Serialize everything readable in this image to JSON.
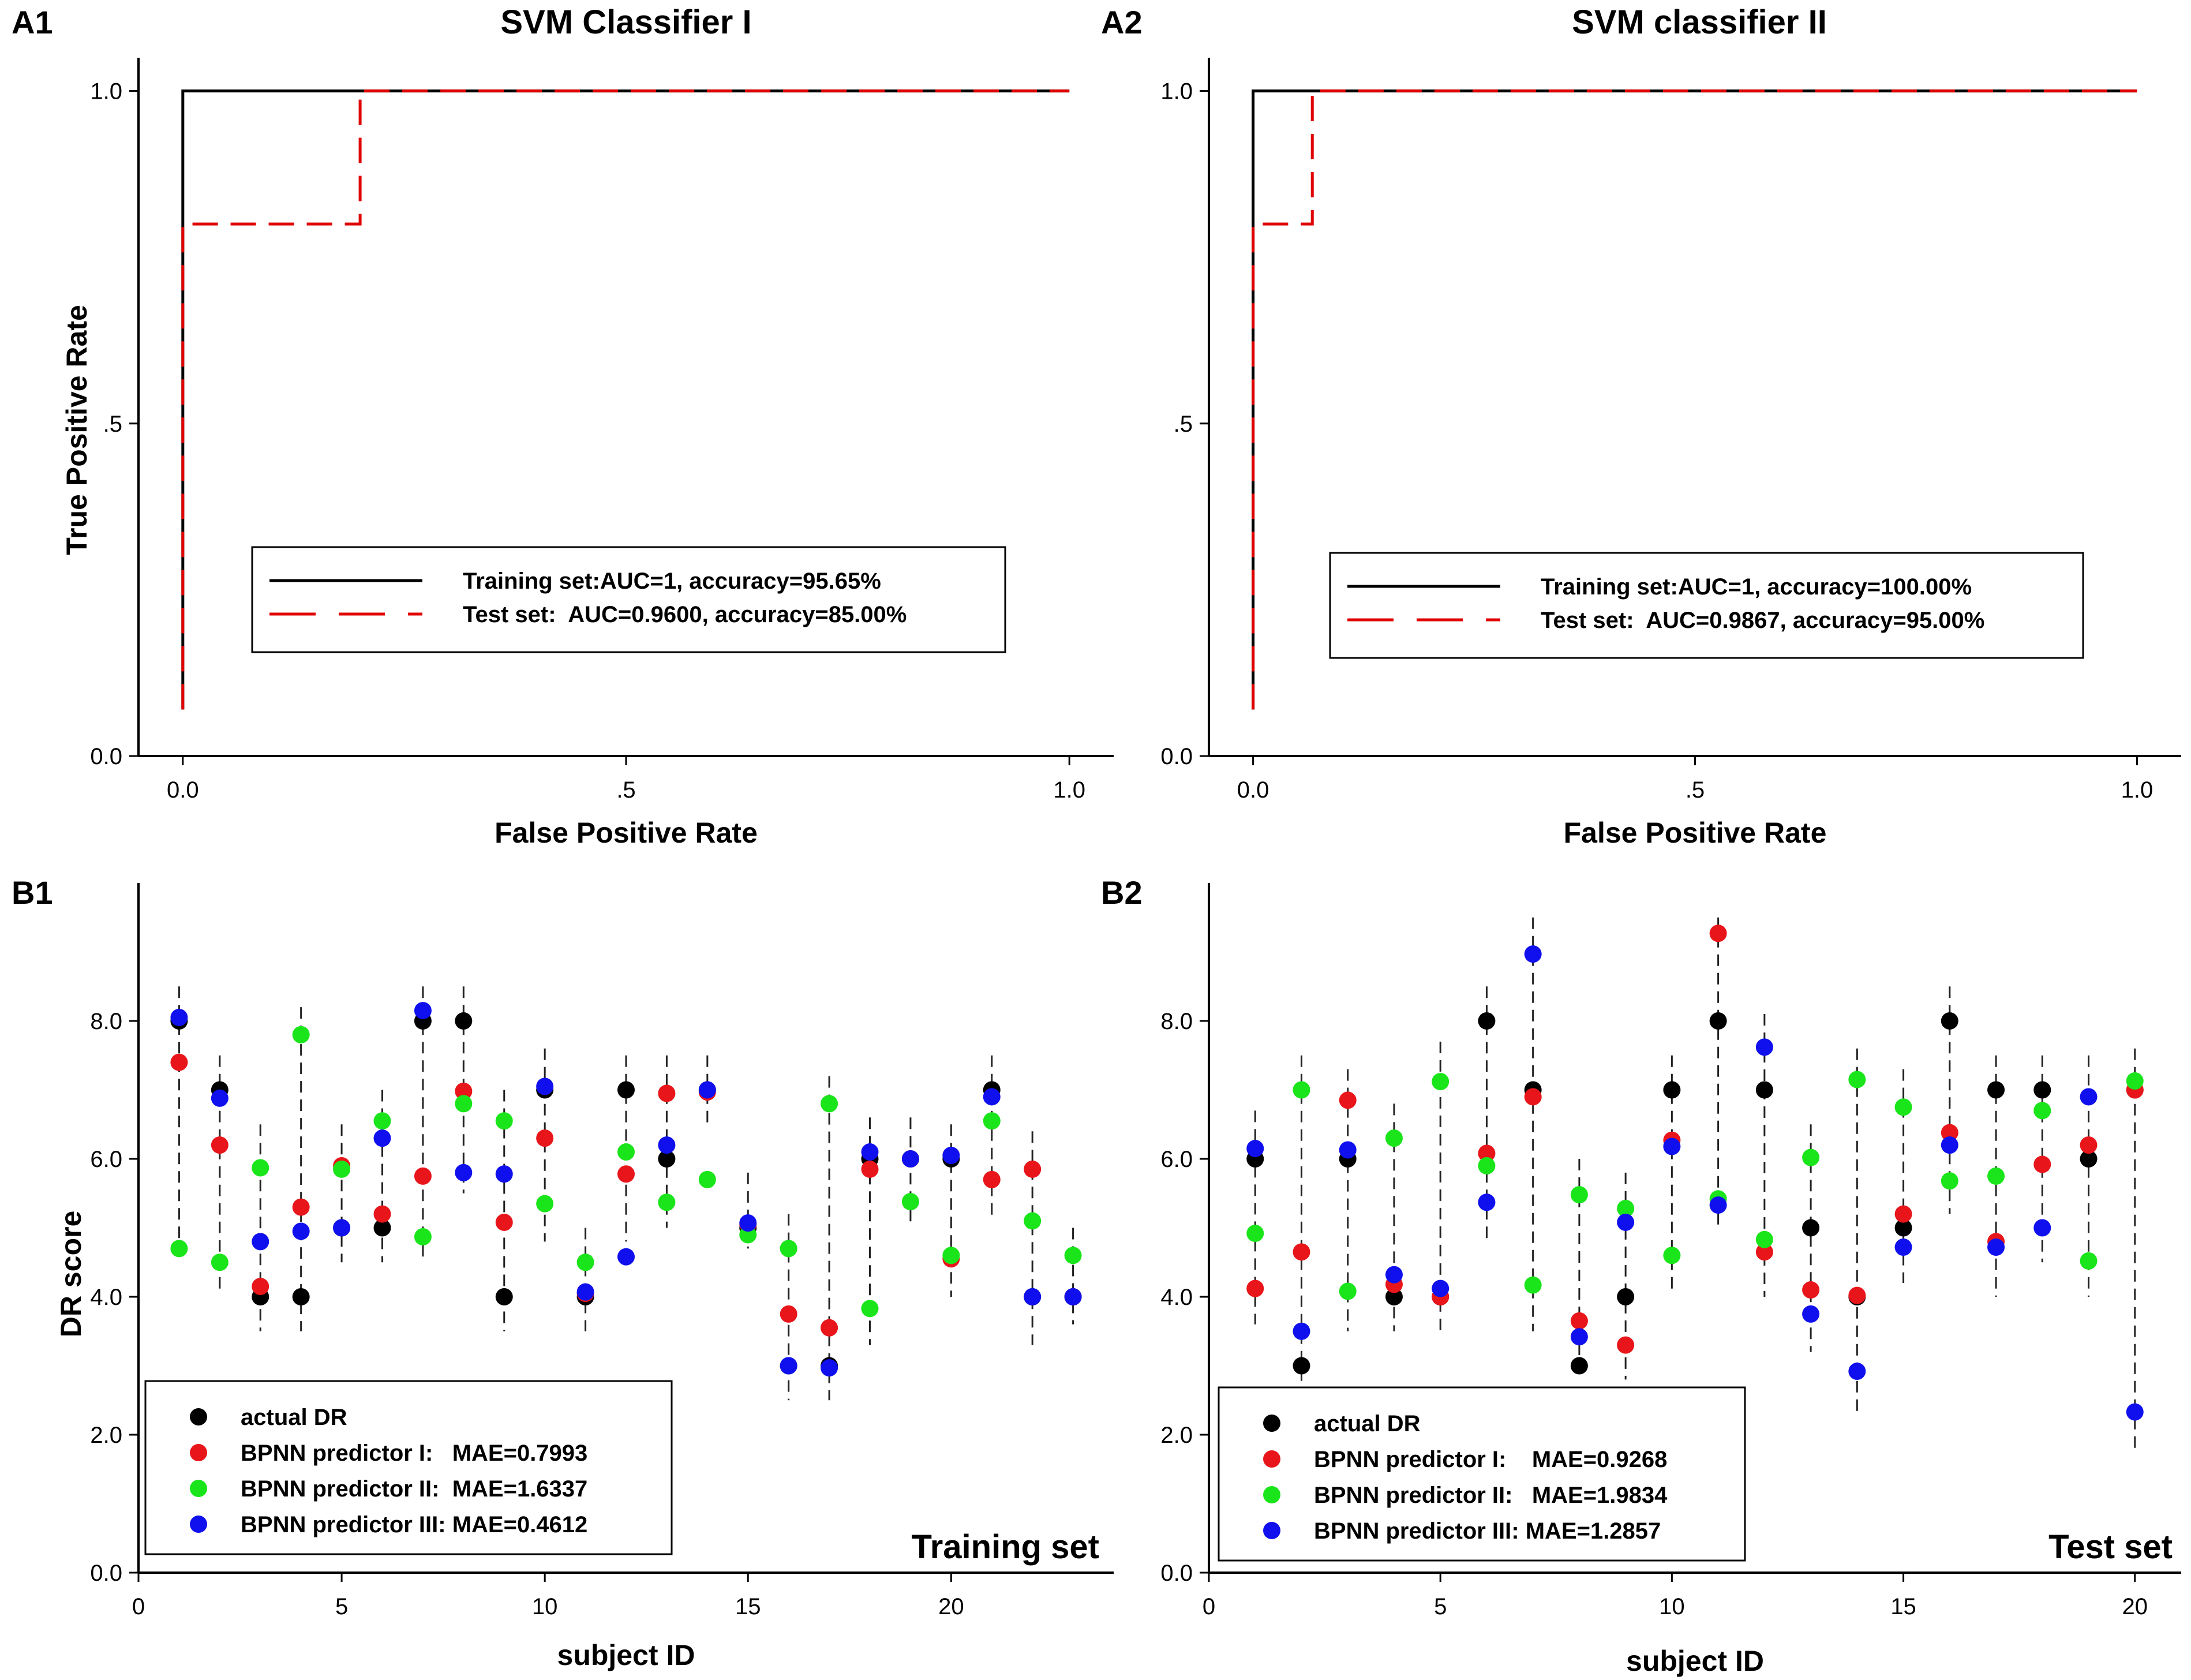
{
  "panels": {
    "A1": "A1",
    "A2": "A2",
    "B1": "B1",
    "B2": "B2"
  },
  "colors": {
    "training_line": "#000000",
    "test_line": "#e00000",
    "actual": "#000000",
    "pred1": "#e8161b",
    "pred2": "#1ae51a",
    "pred3": "#1010ee"
  },
  "chart_data": [
    {
      "id": "A1",
      "type": "line",
      "title": "SVM Classifier I",
      "xlabel": "False Positive Rate",
      "ylabel": "True Positive Rate",
      "xlim": [
        -0.05,
        1.05
      ],
      "ylim": [
        0,
        1.05
      ],
      "xticks": [
        {
          "v": 0,
          "label": "0.0"
        },
        {
          "v": 0.5,
          "label": ".5"
        },
        {
          "v": 1,
          "label": "1.0"
        }
      ],
      "yticks": [
        {
          "v": 0,
          "label": "0.0"
        },
        {
          "v": 0.5,
          "label": ".5"
        },
        {
          "v": 1,
          "label": "1.0"
        }
      ],
      "series": [
        {
          "name": "Training set:AUC=1, accuracy=95.65%",
          "style": "solid",
          "x": [
            0,
            0,
            1
          ],
          "y": [
            0.07,
            1,
            1
          ]
        },
        {
          "name": "Test set:  AUC=0.9600, accuracy=85.00%",
          "style": "dashed",
          "x": [
            0,
            0,
            0.2,
            0.2,
            1
          ],
          "y": [
            0.07,
            0.8,
            0.8,
            1,
            1
          ]
        }
      ],
      "legend_position": "lower-center"
    },
    {
      "id": "A2",
      "type": "line",
      "title": "SVM classifier II",
      "xlabel": "False Positive Rate",
      "ylabel": "",
      "xlim": [
        -0.05,
        1.05
      ],
      "ylim": [
        0,
        1.05
      ],
      "xticks": [
        {
          "v": 0,
          "label": "0.0"
        },
        {
          "v": 0.5,
          "label": ".5"
        },
        {
          "v": 1,
          "label": "1.0"
        }
      ],
      "yticks": [
        {
          "v": 0,
          "label": "0.0"
        },
        {
          "v": 0.5,
          "label": ".5"
        },
        {
          "v": 1,
          "label": "1.0"
        }
      ],
      "series": [
        {
          "name": "Training set:AUC=1, accuracy=100.00%",
          "style": "solid",
          "x": [
            0,
            0,
            1
          ],
          "y": [
            0.07,
            1,
            1
          ]
        },
        {
          "name": "Test set:  AUC=0.9867, accuracy=95.00%",
          "style": "dashed",
          "x": [
            0,
            0,
            0.067,
            0.067,
            1
          ],
          "y": [
            0.07,
            0.8,
            0.8,
            1,
            1
          ]
        }
      ],
      "legend_position": "lower-center"
    },
    {
      "id": "B1",
      "type": "scatter",
      "set_label": "Training set",
      "xlabel": "subject ID",
      "ylabel": "DR score",
      "xlim": [
        0,
        24
      ],
      "ylim": [
        0,
        10
      ],
      "xticks": [
        {
          "v": 0,
          "label": "0"
        },
        {
          "v": 5,
          "label": "5"
        },
        {
          "v": 10,
          "label": "10"
        },
        {
          "v": 15,
          "label": "15"
        },
        {
          "v": 20,
          "label": "20"
        }
      ],
      "yticks": [
        {
          "v": 0,
          "label": "0.0"
        },
        {
          "v": 2,
          "label": "2.0"
        },
        {
          "v": 4,
          "label": "4.0"
        },
        {
          "v": 6,
          "label": "6.0"
        },
        {
          "v": 8,
          "label": "8.0"
        }
      ],
      "x": [
        1,
        2,
        3,
        4,
        5,
        6,
        7,
        8,
        9,
        10,
        11,
        12,
        13,
        14,
        15,
        16,
        17,
        18,
        19,
        20,
        21,
        22,
        23
      ],
      "errorbars": [
        [
          4.5,
          8.5
        ],
        [
          4.1,
          7.5
        ],
        [
          3.5,
          6.5
        ],
        [
          3.5,
          8.2
        ],
        [
          4.5,
          6.5
        ],
        [
          4.5,
          7.0
        ],
        [
          4.5,
          8.5
        ],
        [
          5.5,
          8.5
        ],
        [
          3.5,
          7.0
        ],
        [
          4.8,
          7.6
        ],
        [
          3.5,
          5.0
        ],
        [
          4.8,
          7.5
        ],
        [
          5.0,
          7.5
        ],
        [
          6.5,
          7.5
        ],
        [
          4.7,
          5.8
        ],
        [
          2.5,
          5.2
        ],
        [
          2.5,
          7.2
        ],
        [
          3.3,
          6.6
        ],
        [
          5.0,
          6.6
        ],
        [
          4.0,
          6.5
        ],
        [
          5.1,
          7.5
        ],
        [
          3.3,
          6.4
        ],
        [
          3.6,
          5.0
        ]
      ],
      "series": [
        {
          "name": "actual DR",
          "color_key": "actual",
          "values": [
            8.0,
            7.0,
            4.0,
            4.0,
            5.0,
            5.0,
            8.0,
            8.0,
            4.0,
            7.0,
            4.0,
            7.0,
            6.0,
            7.0,
            5.0,
            3.0,
            3.0,
            6.0,
            6.0,
            6.0,
            7.0,
            4.0,
            4.0
          ]
        },
        {
          "name": "BPNN predictor I:   MAE=0.7993",
          "color_key": "pred1",
          "values": [
            7.4,
            6.2,
            4.15,
            5.3,
            5.9,
            5.2,
            5.75,
            6.98,
            5.08,
            6.3,
            4.05,
            5.78,
            6.95,
            6.97,
            5.05,
            3.75,
            3.55,
            5.85,
            6.0,
            4.55,
            5.7,
            5.85,
            4.0
          ]
        },
        {
          "name": "BPNN predictor II:  MAE=1.6337",
          "color_key": "pred2",
          "values": [
            4.7,
            4.5,
            5.87,
            7.8,
            5.85,
            6.55,
            4.87,
            6.8,
            6.55,
            5.35,
            4.5,
            6.1,
            5.37,
            5.7,
            4.9,
            4.7,
            6.8,
            3.83,
            5.38,
            4.6,
            6.55,
            5.1,
            4.6
          ]
        },
        {
          "name": "BPNN predictor III: MAE=0.4612",
          "color_key": "pred3",
          "values": [
            8.05,
            6.88,
            4.8,
            4.95,
            5.0,
            6.3,
            8.15,
            5.8,
            5.78,
            7.05,
            4.07,
            4.58,
            6.2,
            7.0,
            5.07,
            3.0,
            2.97,
            6.1,
            6.0,
            6.05,
            6.9,
            4.0,
            4.0
          ]
        }
      ],
      "legend_position": "lower-left"
    },
    {
      "id": "B2",
      "type": "scatter",
      "set_label": "Test set",
      "xlabel": "subject ID",
      "ylabel": "",
      "xlim": [
        0,
        21
      ],
      "ylim": [
        0,
        10
      ],
      "xticks": [
        {
          "v": 0,
          "label": "0"
        },
        {
          "v": 5,
          "label": "5"
        },
        {
          "v": 10,
          "label": "10"
        },
        {
          "v": 15,
          "label": "15"
        },
        {
          "v": 20,
          "label": "20"
        }
      ],
      "yticks": [
        {
          "v": 0,
          "label": "0.0"
        },
        {
          "v": 2,
          "label": "2.0"
        },
        {
          "v": 4,
          "label": "4.0"
        },
        {
          "v": 6,
          "label": "6.0"
        },
        {
          "v": 8,
          "label": "8.0"
        }
      ],
      "x": [
        1,
        2,
        3,
        4,
        5,
        6,
        7,
        8,
        9,
        10,
        11,
        12,
        13,
        14,
        15,
        16,
        17,
        18,
        19,
        20
      ],
      "errorbars": [
        [
          3.6,
          6.7
        ],
        [
          2.5,
          7.5
        ],
        [
          3.5,
          7.3
        ],
        [
          3.5,
          6.8
        ],
        [
          3.5,
          7.7
        ],
        [
          4.8,
          8.5
        ],
        [
          3.5,
          9.5
        ],
        [
          2.8,
          6.0
        ],
        [
          2.8,
          5.8
        ],
        [
          4.1,
          7.5
        ],
        [
          5.0,
          9.5
        ],
        [
          4.0,
          8.1
        ],
        [
          3.2,
          6.5
        ],
        [
          2.3,
          7.6
        ],
        [
          4.2,
          7.3
        ],
        [
          5.2,
          8.5
        ],
        [
          4.0,
          7.5
        ],
        [
          4.5,
          7.5
        ],
        [
          4.0,
          7.5
        ],
        [
          1.8,
          7.6
        ]
      ],
      "series": [
        {
          "name": "actual DR",
          "color_key": "actual",
          "values": [
            6.0,
            3.0,
            6.0,
            4.0,
            4.0,
            8.0,
            7.0,
            3.0,
            4.0,
            7.0,
            8.0,
            7.0,
            5.0,
            4.0,
            5.0,
            8.0,
            7.0,
            7.0,
            6.0,
            7.0
          ]
        },
        {
          "name": "BPNN predictor I:    MAE=0.9268",
          "color_key": "pred1",
          "values": [
            4.12,
            4.65,
            6.85,
            4.18,
            4.0,
            6.08,
            6.9,
            3.65,
            3.3,
            6.27,
            9.27,
            4.65,
            4.1,
            4.02,
            5.2,
            6.38,
            4.8,
            5.92,
            6.2,
            7.0
          ]
        },
        {
          "name": "BPNN predictor II:   MAE=1.9834",
          "color_key": "pred2",
          "values": [
            4.92,
            7.0,
            4.08,
            6.3,
            7.12,
            5.9,
            4.17,
            5.48,
            5.28,
            4.6,
            5.42,
            4.83,
            6.02,
            7.15,
            6.75,
            5.68,
            5.75,
            6.7,
            4.52,
            7.13
          ]
        },
        {
          "name": "BPNN predictor III: MAE=1.2857",
          "color_key": "pred3",
          "values": [
            6.15,
            3.5,
            6.13,
            4.32,
            4.12,
            5.37,
            8.97,
            3.42,
            5.08,
            6.18,
            5.33,
            7.62,
            3.75,
            2.92,
            4.72,
            6.2,
            4.72,
            5.0,
            6.9,
            2.33
          ]
        }
      ],
      "legend_position": "lower-left"
    }
  ]
}
